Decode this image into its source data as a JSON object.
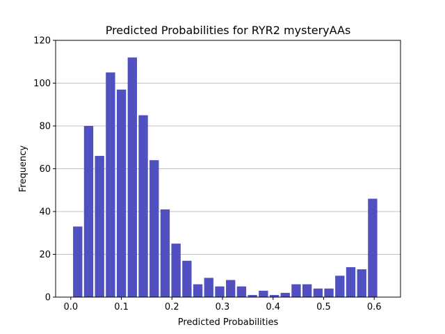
{
  "chart_data": {
    "type": "bar",
    "title": "Predicted Probabilities for RYR2 mysteryAAs",
    "xlabel": "Predicted Probabilities",
    "ylabel": "Frequency",
    "bar_color": "#5050c0",
    "grid": "y",
    "xlim": [
      -0.03,
      0.652
    ],
    "ylim": [
      0,
      120
    ],
    "xticks": [
      0.0,
      0.1,
      0.2,
      0.3,
      0.4,
      0.5,
      0.6
    ],
    "xtick_labels": [
      "0.0",
      "0.1",
      "0.2",
      "0.3",
      "0.4",
      "0.5",
      "0.6"
    ],
    "yticks": [
      0,
      20,
      40,
      60,
      80,
      100,
      120
    ],
    "ytick_labels": [
      "0",
      "20",
      "40",
      "60",
      "80",
      "100",
      "120"
    ],
    "bin_start": 0.0045,
    "bin_width": 0.0216,
    "bar_fraction": 0.85,
    "values": [
      33,
      80,
      66,
      105,
      97,
      112,
      85,
      64,
      41,
      25,
      17,
      6,
      9,
      5,
      8,
      5,
      1,
      3,
      1,
      2,
      6,
      6,
      4,
      4,
      10,
      14,
      13,
      46
    ]
  }
}
